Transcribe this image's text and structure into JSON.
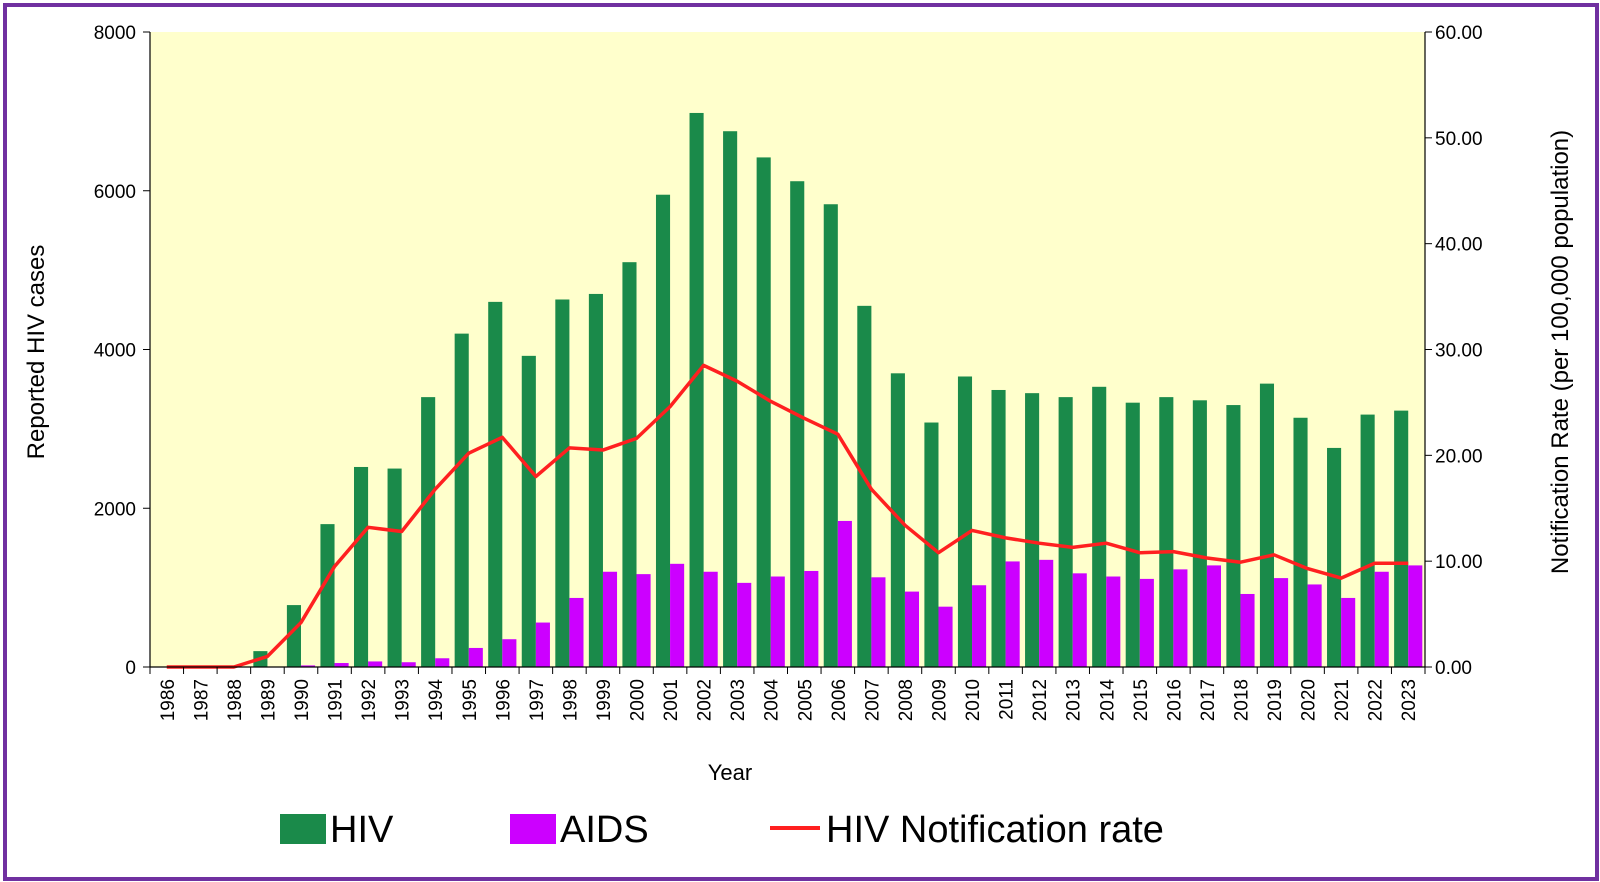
{
  "chart_data": {
    "type": "bar+line",
    "title": "",
    "xlabel": "Year",
    "ylabel": "Reported HIV cases",
    "y2label": "Notification Rate (per 100,000 population)",
    "ylim": [
      0,
      8000
    ],
    "y2lim": [
      0,
      60
    ],
    "yticks": [
      "0",
      "2000",
      "4000",
      "6000",
      "8000"
    ],
    "y2ticks": [
      "0.00",
      "10.00",
      "20.00",
      "30.00",
      "40.00",
      "50.00",
      "60.00"
    ],
    "categories": [
      "1986",
      "1987",
      "1988",
      "1989",
      "1990",
      "1991",
      "1992",
      "1993",
      "1994",
      "1995",
      "1996",
      "1997",
      "1998",
      "1999",
      "2000",
      "2001",
      "2002",
      "2003",
      "2004",
      "2005",
      "2006",
      "2007",
      "2008",
      "2009",
      "2010",
      "2011",
      "2012",
      "2013",
      "2014",
      "2015",
      "2016",
      "2017",
      "2018",
      "2019",
      "2020",
      "2021",
      "2022",
      "2023"
    ],
    "series": [
      {
        "name": "HIV",
        "type": "bar",
        "axis": "left",
        "color": "#1a8a4a",
        "values": [
          0,
          0,
          0,
          200,
          780,
          1800,
          2520,
          2500,
          3400,
          4200,
          4600,
          3920,
          4630,
          4700,
          5100,
          5950,
          6980,
          6750,
          6420,
          6120,
          5830,
          4550,
          3700,
          3080,
          3660,
          3490,
          3450,
          3400,
          3530,
          3330,
          3400,
          3360,
          3300,
          3570,
          3140,
          2760,
          3180,
          3230
        ]
      },
      {
        "name": "AIDS",
        "type": "bar",
        "axis": "left",
        "color": "#cc00ff",
        "values": [
          0,
          0,
          0,
          0,
          20,
          50,
          70,
          60,
          110,
          240,
          350,
          560,
          870,
          1200,
          1170,
          1300,
          1200,
          1060,
          1140,
          1210,
          1840,
          1130,
          950,
          760,
          1030,
          1330,
          1350,
          1180,
          1140,
          1110,
          1230,
          1280,
          920,
          1120,
          1040,
          870,
          1200,
          1280
        ]
      },
      {
        "name": "HIV Notification rate",
        "type": "line",
        "axis": "right",
        "color": "#ff2020",
        "values": [
          0,
          0,
          0,
          1,
          4.2,
          9.5,
          13.2,
          12.8,
          16.8,
          20.2,
          21.7,
          18,
          20.7,
          20.5,
          21.6,
          24.6,
          28.5,
          27,
          25.1,
          23.5,
          22,
          16.8,
          13.4,
          10.8,
          12.9,
          12.2,
          11.7,
          11.3,
          11.7,
          10.8,
          10.9,
          10.3,
          9.9,
          10.6,
          9.3,
          8.4,
          9.8,
          9.8
        ]
      }
    ],
    "legend_position": "bottom",
    "grid": false,
    "plot_background": "#ffffcc"
  }
}
